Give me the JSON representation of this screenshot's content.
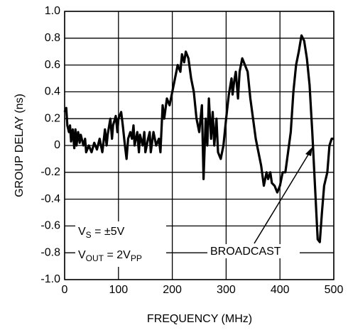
{
  "chart_data": {
    "type": "line",
    "ylabel": "GROUP DELAY (ns)",
    "xlabel": "FREQUENCY (MHz)",
    "x": [
      0,
      3,
      5,
      8,
      10,
      12,
      15,
      18,
      20,
      22,
      25,
      28,
      30,
      35,
      38,
      40,
      45,
      50,
      55,
      60,
      65,
      70,
      75,
      78,
      80,
      85,
      88,
      90,
      95,
      98,
      100,
      105,
      108,
      112,
      115,
      118,
      122,
      125,
      128,
      130,
      135,
      138,
      140,
      145,
      148,
      150,
      155,
      158,
      160,
      165,
      170,
      175,
      178,
      182,
      185,
      190,
      195,
      200,
      205,
      210,
      215,
      218,
      222,
      225,
      230,
      235,
      240,
      245,
      250,
      255,
      258,
      262,
      265,
      268,
      272,
      275,
      278,
      282,
      285,
      290,
      295,
      300,
      305,
      310,
      312,
      315,
      318,
      322,
      325,
      330,
      335,
      340,
      345,
      350,
      355,
      360,
      365,
      370,
      375,
      378,
      382,
      385,
      390,
      395,
      400,
      405,
      410,
      415,
      420,
      425,
      430,
      435,
      440,
      445,
      450,
      455,
      460,
      465,
      470,
      474,
      478,
      482,
      488,
      492,
      496,
      500
    ],
    "series": [
      {
        "color": "#000000",
        "values": [
          0.25,
          0.28,
          0.15,
          0.1,
          0.15,
          0.03,
          0.12,
          -0.02,
          0.12,
          0.0,
          0.1,
          0.02,
          0.08,
          0.0,
          0.05,
          -0.05,
          0.0,
          -0.05,
          0.02,
          -0.03,
          0.05,
          -0.05,
          0.12,
          0.0,
          0.08,
          0.2,
          0.05,
          0.15,
          0.22,
          0.1,
          0.2,
          0.25,
          0.15,
          0.0,
          -0.1,
          0.05,
          0.1,
          0.05,
          0.15,
          0.0,
          0.1,
          -0.05,
          0.08,
          0.0,
          0.1,
          -0.05,
          0.05,
          0.1,
          -0.05,
          0.1,
          0.0,
          0.05,
          -0.05,
          0.3,
          0.2,
          0.35,
          0.3,
          0.4,
          0.5,
          0.6,
          0.55,
          0.68,
          0.62,
          0.7,
          0.65,
          0.5,
          0.4,
          0.2,
          0.1,
          0.3,
          -0.25,
          0.2,
          0.0,
          0.35,
          0.05,
          0.25,
          0.0,
          0.2,
          -0.05,
          -0.1,
          0.0,
          0.2,
          0.38,
          0.5,
          0.38,
          0.48,
          0.55,
          0.35,
          0.55,
          0.65,
          0.6,
          0.55,
          0.35,
          0.2,
          0.05,
          -0.05,
          -0.15,
          -0.3,
          -0.2,
          -0.25,
          -0.2,
          -0.28,
          -0.3,
          -0.35,
          -0.3,
          -0.2,
          -0.2,
          -0.05,
          0.1,
          0.4,
          0.6,
          0.7,
          0.82,
          0.78,
          0.65,
          0.45,
          0.1,
          -0.3,
          -0.7,
          -0.72,
          -0.5,
          -0.3,
          -0.2,
          0.0,
          0.05,
          0.05
        ]
      }
    ],
    "xlim": [
      0,
      500
    ],
    "xticks": [
      0,
      100,
      200,
      300,
      400,
      500
    ],
    "ylim": [
      -1,
      1
    ],
    "yticks": [
      {
        "value": 1,
        "label": "1.0"
      },
      0.8,
      0.6,
      0.4,
      0.2,
      0,
      -0.2,
      -0.4,
      -0.6,
      -0.8,
      {
        "value": -1,
        "label": "-1.0"
      }
    ],
    "grid": true,
    "annotations": [
      [
        "V",
        "S",
        " = ±5V"
      ],
      [
        "V",
        "OUT",
        " = 2V",
        "PP"
      ],
      [
        "BROADCAST"
      ]
    ]
  }
}
